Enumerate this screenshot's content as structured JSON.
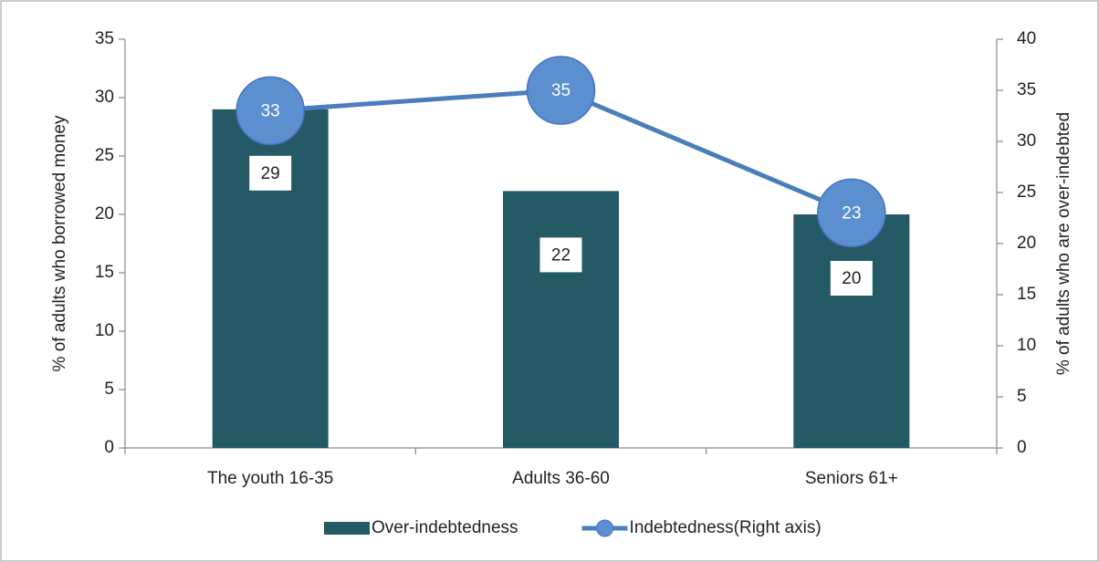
{
  "chart_data": {
    "type": "bar-line",
    "categories": [
      "The youth 16-35",
      "Adults 36-60",
      "Seniors 61+"
    ],
    "series": [
      {
        "name": "Over-indebtedness",
        "type": "bar",
        "color": "#235a66",
        "values": [
          29,
          22,
          20
        ]
      },
      {
        "name": "Indebtedness(Right axis)",
        "type": "line",
        "axis": "y2",
        "color": "#4a7ebb",
        "values": [
          33,
          35,
          23
        ]
      }
    ],
    "ylabel": "% of adults who borrowed money",
    "y2label": "% of adults who are over-indebted",
    "ylim": [
      0,
      35
    ],
    "yticks": [
      0,
      5,
      10,
      15,
      20,
      25,
      30,
      35
    ],
    "y2lim": [
      0,
      40
    ],
    "y2ticks": [
      0,
      5,
      10,
      15,
      20,
      25,
      30,
      35,
      40
    ],
    "legend": "bottom"
  }
}
